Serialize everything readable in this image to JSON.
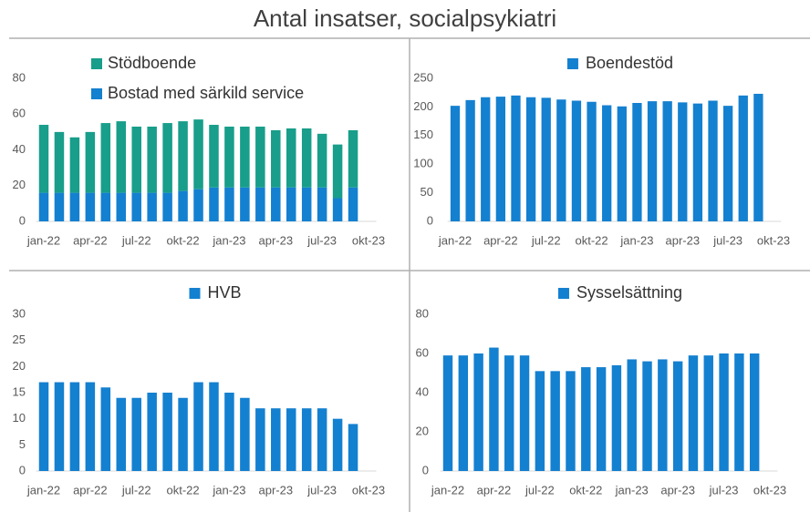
{
  "title": "Antal insatser, socialpsykiatri",
  "chart_data": [
    {
      "type": "stacked_bar",
      "categories": [
        "jan-22",
        null,
        null,
        "apr-22",
        null,
        null,
        "jul-22",
        null,
        null,
        "okt-22",
        null,
        null,
        "jan-23",
        null,
        null,
        "apr-23",
        null,
        null,
        "jul-23",
        null,
        null,
        "okt-23"
      ],
      "series": [
        {
          "name": "Bostad med särkild service",
          "color": "#1480d0",
          "values": [
            16,
            16,
            16,
            16,
            16,
            16,
            16,
            16,
            16,
            17,
            18,
            19,
            19,
            19,
            19,
            19,
            19,
            19,
            19,
            13,
            19,
            null
          ]
        },
        {
          "name": "Stödboende",
          "color": "#189e8a",
          "values": [
            38,
            34,
            31,
            34,
            39,
            40,
            37,
            37,
            39,
            39,
            39,
            35,
            34,
            34,
            34,
            32,
            33,
            33,
            30,
            30,
            32,
            null
          ]
        }
      ],
      "ylim": [
        0,
        80
      ],
      "yticks": [
        0,
        20,
        40,
        60,
        80
      ],
      "legend": "top-left"
    },
    {
      "type": "bar",
      "categories": [
        "jan-22",
        null,
        null,
        "apr-22",
        null,
        null,
        "jul-22",
        null,
        null,
        "okt-22",
        null,
        null,
        "jan-23",
        null,
        null,
        "apr-23",
        null,
        null,
        "jul-23",
        null,
        null,
        "okt-23"
      ],
      "series": [
        {
          "name": "Boendestöd",
          "color": "#1480d0",
          "values": [
            202,
            212,
            217,
            218,
            220,
            217,
            216,
            213,
            211,
            209,
            203,
            201,
            207,
            210,
            210,
            208,
            206,
            211,
            202,
            220,
            223,
            null
          ]
        }
      ],
      "ylim": [
        0,
        250
      ],
      "yticks": [
        0,
        50,
        100,
        150,
        200,
        250
      ],
      "legend": "top-center"
    },
    {
      "type": "bar",
      "categories": [
        "jan-22",
        null,
        null,
        "apr-22",
        null,
        null,
        "jul-22",
        null,
        null,
        "okt-22",
        null,
        null,
        "jan-23",
        null,
        null,
        "apr-23",
        null,
        null,
        "jul-23",
        null,
        null,
        "okt-23"
      ],
      "series": [
        {
          "name": "HVB",
          "color": "#1480d0",
          "values": [
            17,
            17,
            17,
            17,
            16,
            14,
            14,
            15,
            15,
            14,
            17,
            17,
            15,
            14,
            12,
            12,
            12,
            12,
            12,
            10,
            9,
            null
          ]
        }
      ],
      "ylim": [
        0,
        30
      ],
      "yticks": [
        0,
        5,
        10,
        15,
        20,
        25,
        30
      ],
      "legend": "top-center"
    },
    {
      "type": "bar",
      "categories": [
        "jan-22",
        null,
        null,
        "apr-22",
        null,
        null,
        "jul-22",
        null,
        null,
        "okt-22",
        null,
        null,
        "jan-23",
        null,
        null,
        "apr-23",
        null,
        null,
        "jul-23",
        null,
        null,
        "okt-23"
      ],
      "series": [
        {
          "name": "Sysselsättning",
          "color": "#1480d0",
          "values": [
            59,
            59,
            60,
            63,
            59,
            59,
            51,
            51,
            51,
            53,
            53,
            54,
            57,
            56,
            57,
            56,
            59,
            59,
            60,
            60,
            60,
            null
          ]
        }
      ],
      "ylim": [
        0,
        80
      ],
      "yticks": [
        0,
        20,
        40,
        60,
        80
      ],
      "legend": "top-center"
    }
  ]
}
